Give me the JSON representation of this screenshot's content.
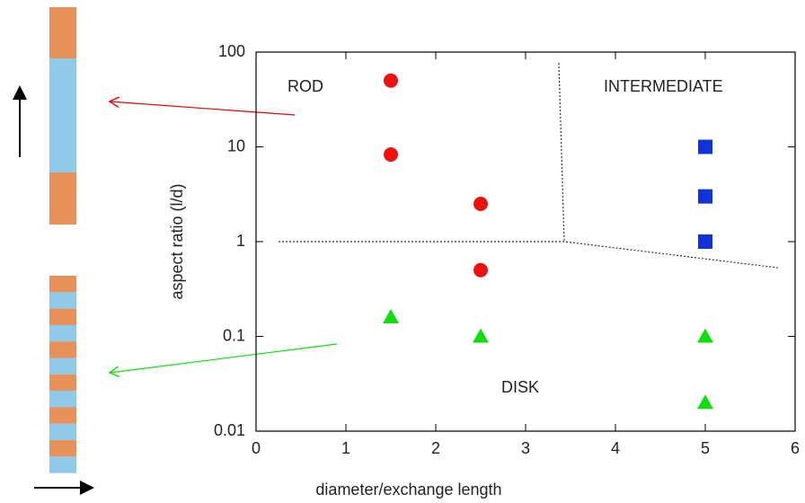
{
  "chart_data": {
    "type": "scatter",
    "xlabel": "diameter/exchange length",
    "ylabel": "aspect ratio (l/d)",
    "xlim": [
      0,
      6
    ],
    "xticks": [
      0,
      1,
      2,
      3,
      4,
      5,
      6
    ],
    "ylim": [
      0.01,
      100
    ],
    "yticks": [
      0.01,
      0.1,
      1,
      10,
      100
    ],
    "ylog": true,
    "annotations": [
      "ROD",
      "INTERMEDIATE",
      "DISK"
    ],
    "series": [
      {
        "color": "#ee1111",
        "marker": "circle",
        "x": [
          1.5,
          1.5,
          2.5,
          2.5
        ],
        "values": [
          50,
          8.3,
          2.5,
          0.5
        ]
      },
      {
        "color": "#1133dd",
        "marker": "square",
        "x": [
          5,
          5,
          5
        ],
        "values": [
          10,
          3,
          1
        ]
      },
      {
        "color": "#11dd11",
        "marker": "triangle",
        "x": [
          1.5,
          2.5,
          5,
          5
        ],
        "values": [
          0.16,
          0.1,
          0.1,
          0.02
        ]
      }
    ],
    "boundaries": [
      {
        "x": [
          0.25,
          3.43,
          5.81
        ],
        "values": [
          1,
          1,
          0.53
        ]
      },
      {
        "x": [
          3.37,
          3.43
        ],
        "values": [
          77,
          1
        ]
      }
    ]
  }
}
